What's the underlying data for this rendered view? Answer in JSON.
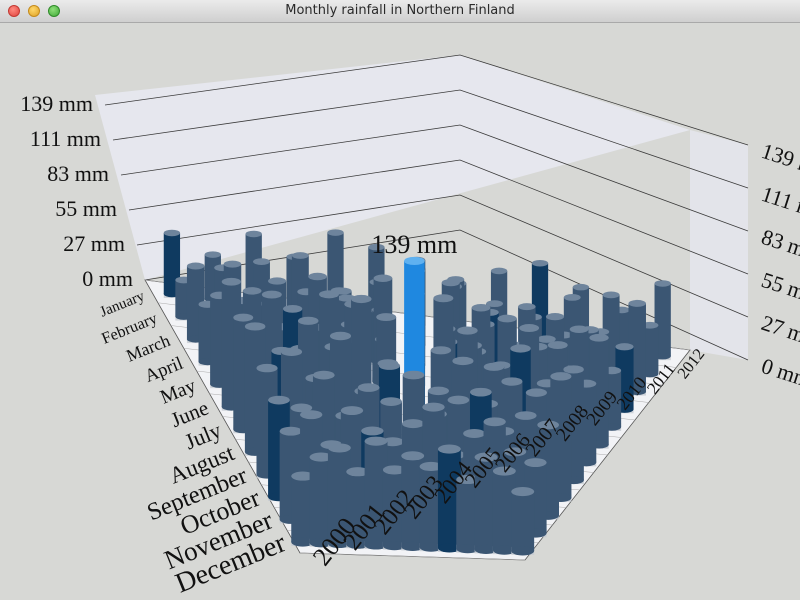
{
  "window": {
    "title": "Monthly rainfall in Northern Finland",
    "controls": [
      "close-icon",
      "minimize-icon",
      "zoom-icon"
    ]
  },
  "chart_data": {
    "type": "bar3d",
    "title": "",
    "months": [
      "January",
      "February",
      "March",
      "April",
      "May",
      "June",
      "July",
      "August",
      "September",
      "October",
      "November",
      "December"
    ],
    "years": [
      "2000",
      "2001",
      "2002",
      "2003",
      "2004",
      "2005",
      "2006",
      "2007",
      "2008",
      "2009",
      "2010",
      "2011",
      "2012"
    ],
    "value_axis": {
      "labels": [
        "0 mm",
        "27 mm",
        "55 mm",
        "83 mm",
        "111 mm",
        "139 mm"
      ],
      "range": [
        0,
        139
      ],
      "unit": "mm"
    },
    "highlight": {
      "month": "August",
      "year": "2006",
      "value": 139,
      "label": "139 mm",
      "color": "#1f88e0"
    },
    "bar_color": "#3b5673",
    "dark_bar_color": "#0f3a60",
    "values": [
      [
        52,
        38,
        60,
        45,
        70,
        62,
        48,
        40,
        55,
        66,
        50,
        35,
        62
      ],
      [
        30,
        44,
        53,
        62,
        37,
        48,
        70,
        58,
        42,
        35,
        55,
        61,
        40
      ],
      [
        58,
        63,
        35,
        48,
        52,
        40,
        75,
        66,
        49,
        57,
        38,
        44,
        70
      ],
      [
        44,
        50,
        68,
        36,
        61,
        55,
        45,
        82,
        53,
        40,
        65,
        58,
        48
      ],
      [
        66,
        72,
        48,
        88,
        55,
        92,
        64,
        50,
        78,
        45,
        60,
        70,
        42
      ],
      [
        90,
        55,
        75,
        64,
        83,
        60,
        95,
        72,
        58,
        84,
        66,
        52,
        77
      ],
      [
        78,
        96,
        60,
        100,
        70,
        88,
        58,
        105,
        74,
        62,
        90,
        80,
        55
      ],
      [
        85,
        70,
        92,
        76,
        110,
        68,
        139,
        80,
        95,
        72,
        86,
        64,
        75
      ],
      [
        70,
        82,
        66,
        95,
        60,
        78,
        72,
        64,
        85,
        58,
        74,
        68,
        80
      ],
      [
        62,
        58,
        80,
        55,
        74,
        66,
        84,
        60,
        70,
        76,
        52,
        63,
        58
      ],
      [
        55,
        66,
        48,
        70,
        58,
        52,
        64,
        75,
        46,
        60,
        68,
        50,
        44
      ],
      [
        40,
        52,
        58,
        44,
        63,
        46,
        55,
        49,
        60,
        42,
        56,
        48,
        36
      ]
    ]
  }
}
